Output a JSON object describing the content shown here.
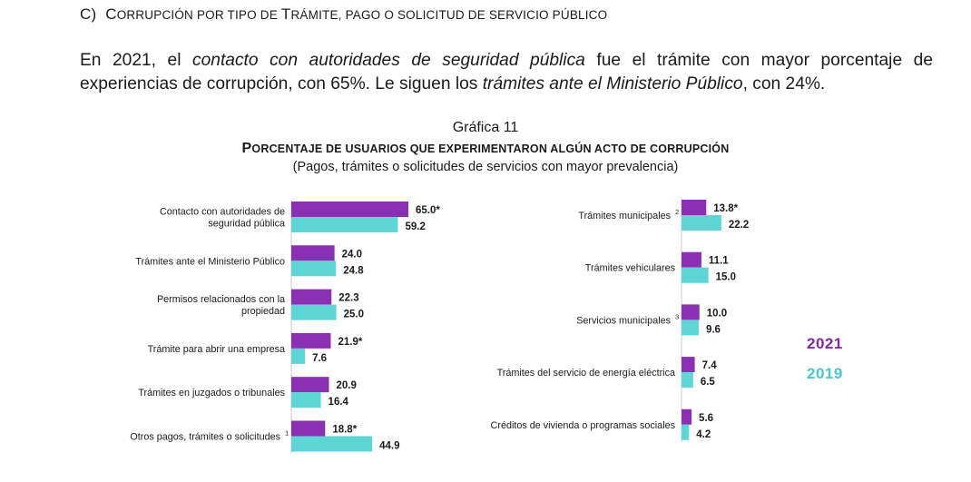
{
  "heading": {
    "letter": "C)",
    "parts": [
      "C",
      "ORRUPCIÓN POR TIPO DE ",
      "T",
      "RÁMITE, PAGO O SOLICITUD DE SERVICIO PÚBLICO"
    ]
  },
  "intro": {
    "t1": "En 2021, el ",
    "e1": "contacto con autoridades de seguridad pública",
    "t2": " fue el trámite con mayor porcentaje de experiencias de corrupción, con 65%. Le siguen los ",
    "e2": "trámites ante el Ministerio Público",
    "t3": ", con 24%."
  },
  "chart_number": "Gráfica 11",
  "chart_title_parts": [
    "P",
    "ORCENTAJE DE USUARIOS QUE EXPERIMENTARON ALGÚN ACTO DE CORRUPCIÓN"
  ],
  "chart_subtitle": "(Pagos, trámites o solicitudes de servicios con mayor prevalencia)",
  "legend": {
    "s2021": "2021",
    "s2019": "2019"
  },
  "colors": {
    "s2021": "#8b2fb3",
    "s2019": "#5fd6d6",
    "legend2021": "#7d2aa3",
    "legend2019": "#4cc6c9"
  },
  "chart_data": {
    "type": "bar",
    "orientation": "horizontal",
    "unit": "%",
    "series_names": [
      "2021",
      "2019"
    ],
    "panels": [
      {
        "categories": [
          {
            "label": [
              "Contacto con autoridades de",
              "seguridad pública"
            ],
            "sup": "",
            "v2021": 65.0,
            "l2021": "65.0*",
            "v2019": 59.2,
            "l2019": "59.2"
          },
          {
            "label": [
              "Trámites ante el Ministerio Público"
            ],
            "sup": "",
            "v2021": 24.0,
            "l2021": "24.0",
            "v2019": 24.8,
            "l2019": "24.8"
          },
          {
            "label": [
              "Permisos relacionados con la",
              "propiedad"
            ],
            "sup": "",
            "v2021": 22.3,
            "l2021": "22.3",
            "v2019": 25.0,
            "l2019": "25.0"
          },
          {
            "label": [
              "Trámite para abrir una empresa"
            ],
            "sup": "",
            "v2021": 21.9,
            "l2021": "21.9*",
            "v2019": 7.6,
            "l2019": "7.6"
          },
          {
            "label": [
              "Trámites en juzgados o tribunales"
            ],
            "sup": "",
            "v2021": 20.9,
            "l2021": "20.9",
            "v2019": 16.4,
            "l2019": "16.4"
          },
          {
            "label": [
              "Otros pagos, trámites o solicitudes"
            ],
            "sup": "1",
            "v2021": 18.8,
            "l2021": "18.8*",
            "v2019": 44.9,
            "l2019": "44.9"
          }
        ]
      },
      {
        "categories": [
          {
            "label": [
              "Trámites municipales"
            ],
            "sup": "2",
            "v2021": 13.8,
            "l2021": "13.8*",
            "v2019": 22.2,
            "l2019": "22.2"
          },
          {
            "label": [
              "Trámites vehiculares"
            ],
            "sup": "",
            "v2021": 11.1,
            "l2021": "11.1",
            "v2019": 15.0,
            "l2019": "15.0"
          },
          {
            "label": [
              "Servicios municipales"
            ],
            "sup": "3",
            "v2021": 10.0,
            "l2021": "10.0",
            "v2019": 9.6,
            "l2019": "9.6"
          },
          {
            "label": [
              "Trámites del servicio de energía eléctrica"
            ],
            "sup": "",
            "v2021": 7.4,
            "l2021": "7.4",
            "v2019": 6.5,
            "l2019": "6.5"
          },
          {
            "label": [
              "Créditos de vivienda o programas sociales"
            ],
            "sup": "",
            "v2021": 5.6,
            "l2021": "5.6",
            "v2019": 4.2,
            "l2019": "4.2"
          }
        ]
      }
    ]
  }
}
